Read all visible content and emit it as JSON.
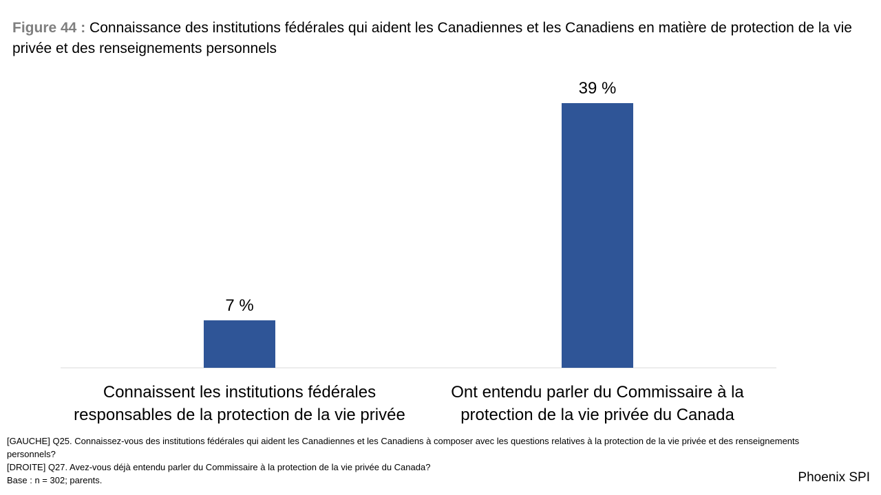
{
  "figure": {
    "label": "Figure 44 :",
    "title": "Connaissance des institutions fédérales qui aident les Canadiennes et les Canadiens en matière de protection de la vie privée et des renseignements personnels"
  },
  "chart_data": {
    "type": "bar",
    "categories": [
      "Connaissent les institutions fédérales responsables de la protection de la vie privée",
      "Ont entendu parler du Commissaire à la protection de la vie privée du Canada"
    ],
    "values": [
      7,
      39
    ],
    "data_labels": [
      "7 %",
      "39 %"
    ],
    "ylim": [
      0,
      39
    ],
    "grid": false,
    "legend": "none",
    "bar_color": "#2f5597"
  },
  "notes": [
    "[GAUCHE] Q25. Connaissez-vous des institutions fédérales qui aident les Canadiennes et les Canadiens à composer avec les questions relatives à la protection de la vie privée et des renseignements personnels?",
    "[DROITE] Q27. Avez-vous déjà entendu parler du Commissaire à la protection de la vie privée du Canada?",
    "Base : n = 302; parents."
  ],
  "brand": "Phoenix SPI"
}
